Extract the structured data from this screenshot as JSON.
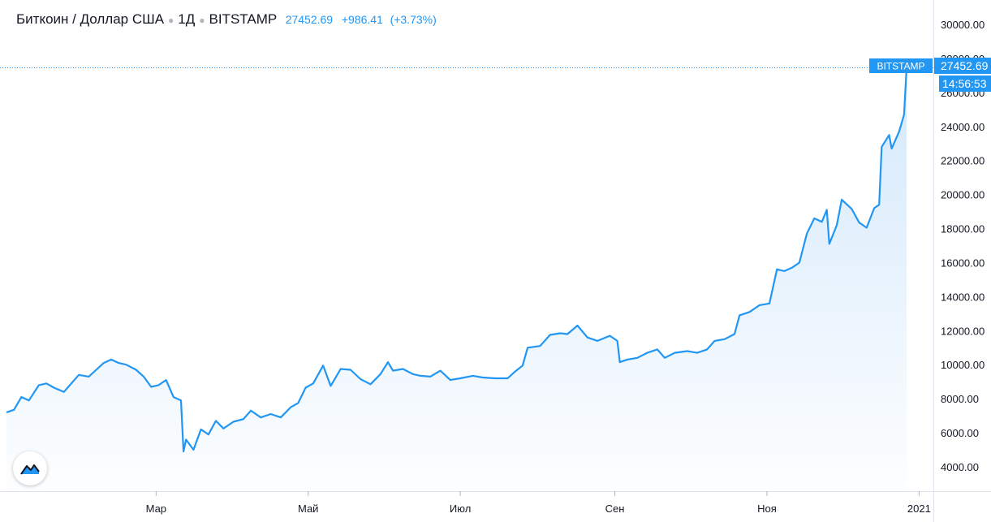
{
  "header": {
    "symbol": "Биткоин / Доллар США",
    "interval": "1Д",
    "exchange": "BITSTAMP",
    "price": "27452.69",
    "change": "+986.41",
    "change_pct": "(+3.73%)"
  },
  "price_tag": {
    "exchange": "BITSTAMP",
    "price": "27452.69",
    "countdown": "14:56:53"
  },
  "colors": {
    "line": "#2196f3",
    "fill": "#cfe6fb",
    "tag": "#2196f3"
  },
  "logo_icon": "tradingview-logo-icon",
  "chart_data": {
    "type": "area",
    "title": "Биткоин / Доллар США",
    "x_start": "2020-01-01",
    "x_end": "2020-12-27",
    "x_axis_end": "2021-01-09",
    "x_ticks": [
      {
        "date": "2020-03-01",
        "label": "Мар"
      },
      {
        "date": "2020-05-01",
        "label": "Май"
      },
      {
        "date": "2020-07-01",
        "label": "Июл"
      },
      {
        "date": "2020-09-01",
        "label": "Сен"
      },
      {
        "date": "2020-11-01",
        "label": "Ноя"
      },
      {
        "date": "2021-01-01",
        "label": "2021"
      }
    ],
    "y_ticks": [
      "30000.00",
      "28000.00",
      "26000.00",
      "24000.00",
      "22000.00",
      "20000.00",
      "18000.00",
      "16000.00",
      "14000.00",
      "12000.00",
      "10000.00",
      "8000.00",
      "6000.00",
      "4000.00"
    ],
    "ylim": [
      2500,
      31000
    ],
    "last_value": 27452.69,
    "points": [
      [
        "2020-01-01",
        7200
      ],
      [
        "2020-01-04",
        7350
      ],
      [
        "2020-01-07",
        8100
      ],
      [
        "2020-01-10",
        7900
      ],
      [
        "2020-01-14",
        8800
      ],
      [
        "2020-01-17",
        8900
      ],
      [
        "2020-01-20",
        8650
      ],
      [
        "2020-01-24",
        8400
      ],
      [
        "2020-01-27",
        8900
      ],
      [
        "2020-01-30",
        9400
      ],
      [
        "2020-02-03",
        9300
      ],
      [
        "2020-02-06",
        9700
      ],
      [
        "2020-02-09",
        10100
      ],
      [
        "2020-02-12",
        10300
      ],
      [
        "2020-02-15",
        10100
      ],
      [
        "2020-02-18",
        10000
      ],
      [
        "2020-02-22",
        9700
      ],
      [
        "2020-02-25",
        9300
      ],
      [
        "2020-02-28",
        8700
      ],
      [
        "2020-03-02",
        8800
      ],
      [
        "2020-03-05",
        9100
      ],
      [
        "2020-03-08",
        8100
      ],
      [
        "2020-03-11",
        7900
      ],
      [
        "2020-03-12",
        4900
      ],
      [
        "2020-03-13",
        5600
      ],
      [
        "2020-03-16",
        5000
      ],
      [
        "2020-03-19",
        6200
      ],
      [
        "2020-03-22",
        5900
      ],
      [
        "2020-03-25",
        6700
      ],
      [
        "2020-03-28",
        6250
      ],
      [
        "2020-04-01",
        6650
      ],
      [
        "2020-04-05",
        6800
      ],
      [
        "2020-04-08",
        7300
      ],
      [
        "2020-04-12",
        6900
      ],
      [
        "2020-04-16",
        7100
      ],
      [
        "2020-04-20",
        6900
      ],
      [
        "2020-04-24",
        7500
      ],
      [
        "2020-04-27",
        7750
      ],
      [
        "2020-04-30",
        8650
      ],
      [
        "2020-05-03",
        8900
      ],
      [
        "2020-05-07",
        9950
      ],
      [
        "2020-05-10",
        8750
      ],
      [
        "2020-05-14",
        9750
      ],
      [
        "2020-05-18",
        9700
      ],
      [
        "2020-05-22",
        9150
      ],
      [
        "2020-05-26",
        8850
      ],
      [
        "2020-05-30",
        9450
      ],
      [
        "2020-06-02",
        10150
      ],
      [
        "2020-06-04",
        9650
      ],
      [
        "2020-06-08",
        9750
      ],
      [
        "2020-06-12",
        9450
      ],
      [
        "2020-06-15",
        9350
      ],
      [
        "2020-06-19",
        9300
      ],
      [
        "2020-06-23",
        9650
      ],
      [
        "2020-06-27",
        9100
      ],
      [
        "2020-07-01",
        9200
      ],
      [
        "2020-07-06",
        9350
      ],
      [
        "2020-07-10",
        9250
      ],
      [
        "2020-07-15",
        9200
      ],
      [
        "2020-07-20",
        9200
      ],
      [
        "2020-07-23",
        9600
      ],
      [
        "2020-07-26",
        9950
      ],
      [
        "2020-07-28",
        11000
      ],
      [
        "2020-08-02",
        11100
      ],
      [
        "2020-08-06",
        11750
      ],
      [
        "2020-08-10",
        11850
      ],
      [
        "2020-08-13",
        11800
      ],
      [
        "2020-08-17",
        12300
      ],
      [
        "2020-08-21",
        11600
      ],
      [
        "2020-08-25",
        11400
      ],
      [
        "2020-08-30",
        11700
      ],
      [
        "2020-09-02",
        11400
      ],
      [
        "2020-09-03",
        10150
      ],
      [
        "2020-09-06",
        10300
      ],
      [
        "2020-09-10",
        10400
      ],
      [
        "2020-09-14",
        10700
      ],
      [
        "2020-09-18",
        10900
      ],
      [
        "2020-09-21",
        10400
      ],
      [
        "2020-09-25",
        10700
      ],
      [
        "2020-09-30",
        10800
      ],
      [
        "2020-10-04",
        10700
      ],
      [
        "2020-10-08",
        10900
      ],
      [
        "2020-10-11",
        11400
      ],
      [
        "2020-10-15",
        11500
      ],
      [
        "2020-10-19",
        11800
      ],
      [
        "2020-10-21",
        12900
      ],
      [
        "2020-10-25",
        13100
      ],
      [
        "2020-10-29",
        13500
      ],
      [
        "2020-11-02",
        13600
      ],
      [
        "2020-11-05",
        15600
      ],
      [
        "2020-11-08",
        15500
      ],
      [
        "2020-11-11",
        15700
      ],
      [
        "2020-11-14",
        16000
      ],
      [
        "2020-11-17",
        17700
      ],
      [
        "2020-11-20",
        18600
      ],
      [
        "2020-11-23",
        18400
      ],
      [
        "2020-11-25",
        19100
      ],
      [
        "2020-11-26",
        17100
      ],
      [
        "2020-11-29",
        18200
      ],
      [
        "2020-12-01",
        19700
      ],
      [
        "2020-12-05",
        19150
      ],
      [
        "2020-12-08",
        18350
      ],
      [
        "2020-12-11",
        18050
      ],
      [
        "2020-12-14",
        19200
      ],
      [
        "2020-12-16",
        19400
      ],
      [
        "2020-12-17",
        22800
      ],
      [
        "2020-12-20",
        23500
      ],
      [
        "2020-12-21",
        22700
      ],
      [
        "2020-12-24",
        23700
      ],
      [
        "2020-12-26",
        24700
      ],
      [
        "2020-12-27",
        27452.69
      ]
    ],
    "grid": false,
    "legend": "top-left"
  }
}
